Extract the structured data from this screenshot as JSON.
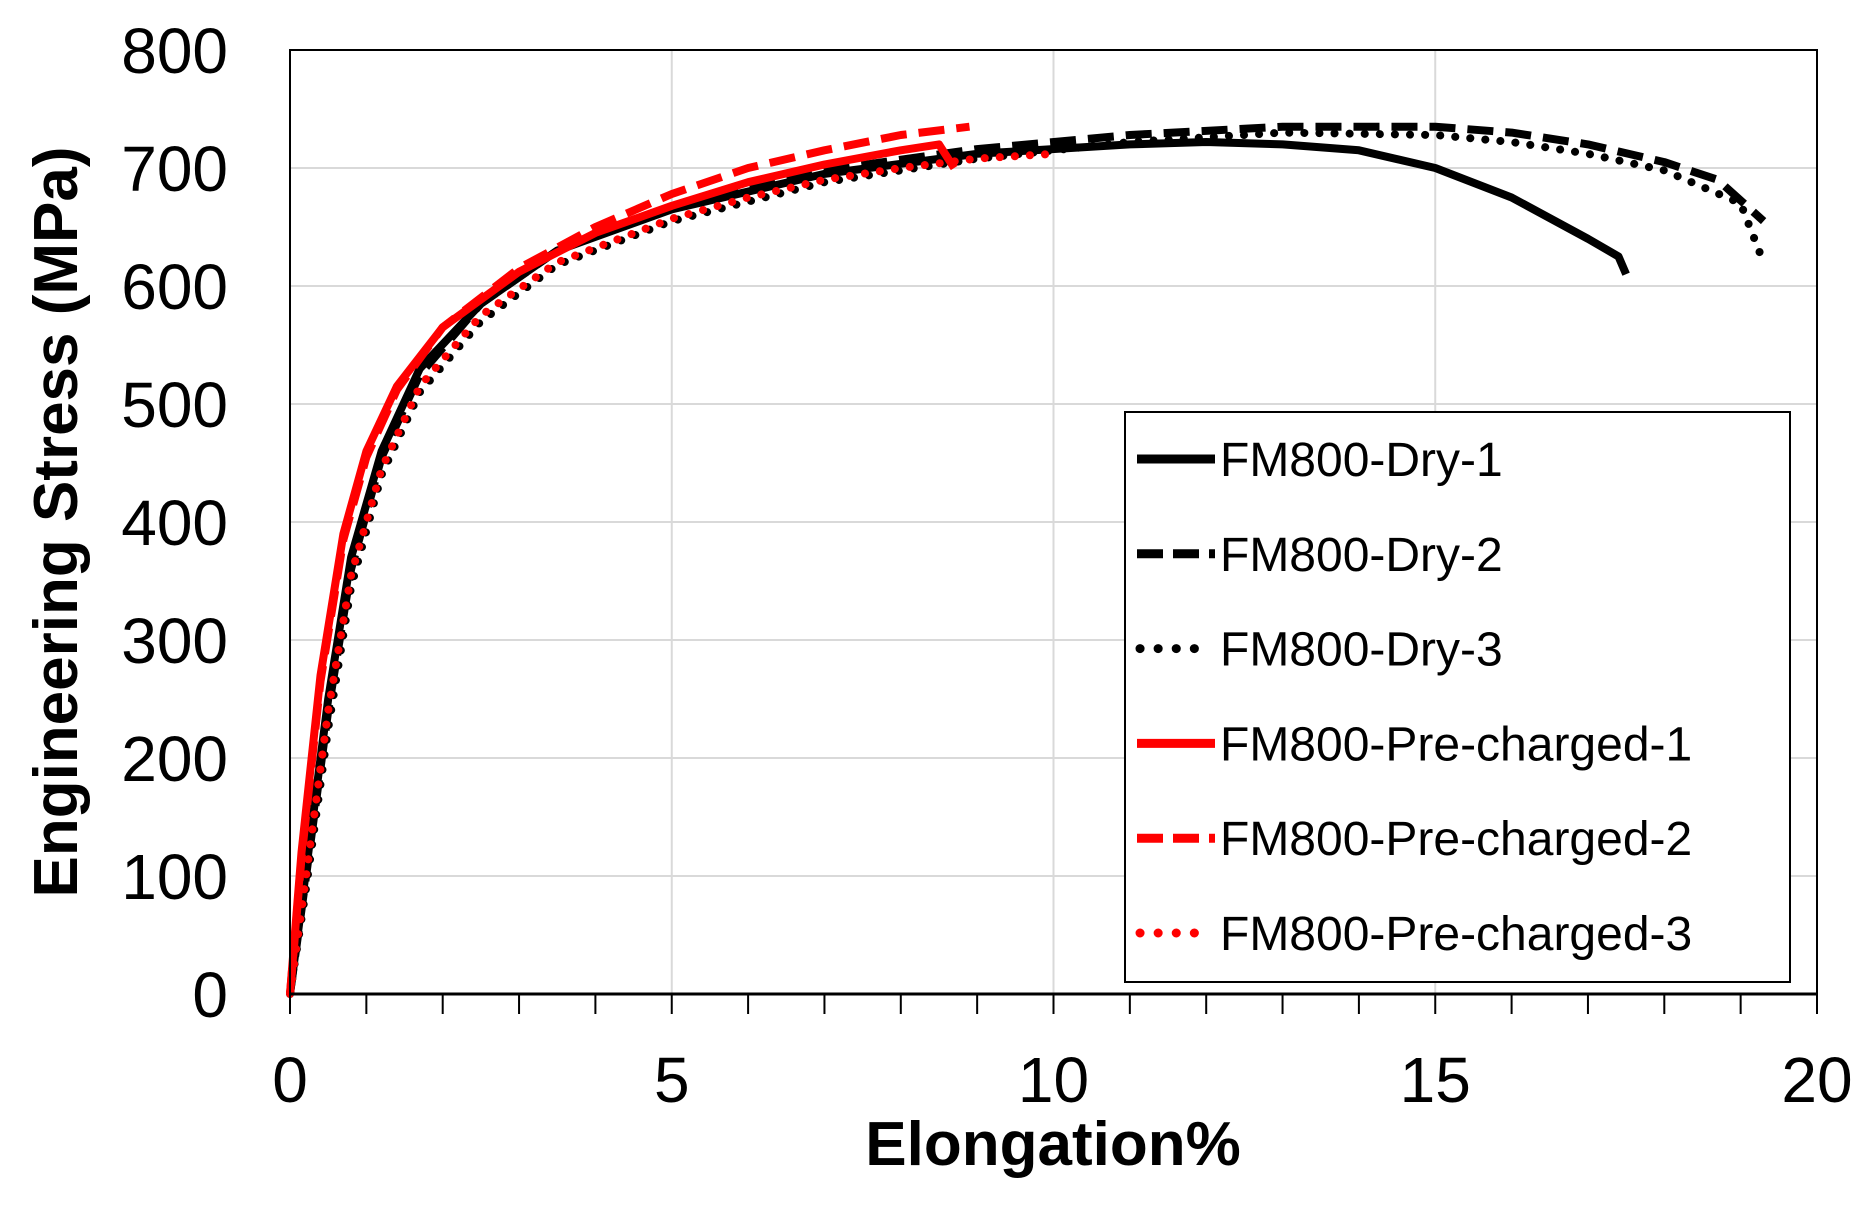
{
  "chart_data": {
    "type": "line",
    "xlabel": "Elongation%",
    "ylabel": "Engineering Stress (MPa)",
    "xlim": [
      0,
      20
    ],
    "ylim": [
      0,
      800
    ],
    "xticks": [
      0,
      5,
      10,
      15,
      20
    ],
    "yticks": [
      0,
      100,
      200,
      300,
      400,
      500,
      600,
      700,
      800
    ],
    "x_minor_tick_step": 1,
    "grid": true,
    "legend_position": "bottom-right",
    "series": [
      {
        "name": "FM800-Dry-1",
        "color": "#000000",
        "style": "solid",
        "x": [
          0,
          0.2,
          0.5,
          0.8,
          1.2,
          1.7,
          2.5,
          3.5,
          5,
          7,
          9,
          11,
          12,
          13,
          14,
          15,
          16,
          17,
          17.4,
          17.5
        ],
        "y": [
          0,
          100,
          250,
          370,
          460,
          530,
          585,
          630,
          665,
          695,
          712,
          720,
          722,
          720,
          715,
          700,
          675,
          640,
          625,
          610
        ]
      },
      {
        "name": "FM800-Dry-2",
        "color": "#000000",
        "style": "dashed",
        "x": [
          0,
          0.2,
          0.5,
          0.8,
          1.2,
          1.7,
          2.5,
          3.5,
          5,
          7,
          9,
          11,
          13,
          15,
          16,
          17,
          18,
          18.7,
          19.3
        ],
        "y": [
          0,
          95,
          240,
          360,
          455,
          525,
          585,
          630,
          668,
          698,
          716,
          728,
          735,
          735,
          730,
          720,
          705,
          690,
          655
        ]
      },
      {
        "name": "FM800-Dry-3",
        "color": "#000000",
        "style": "dotted",
        "x": [
          0,
          0.2,
          0.5,
          0.8,
          1.2,
          1.7,
          2.5,
          3.5,
          5,
          7,
          9,
          11,
          13,
          15,
          16,
          17,
          18,
          19,
          19.3
        ],
        "y": [
          0,
          85,
          225,
          345,
          440,
          510,
          570,
          618,
          655,
          688,
          708,
          722,
          730,
          728,
          722,
          712,
          698,
          670,
          620
        ]
      },
      {
        "name": "FM800-Pre-charged-1",
        "color": "#ff0000",
        "style": "solid",
        "x": [
          0,
          0.15,
          0.4,
          0.7,
          1.0,
          1.4,
          2.0,
          3.0,
          4.0,
          5.0,
          6.0,
          7.0,
          8.0,
          8.5,
          8.7
        ],
        "y": [
          0,
          120,
          270,
          390,
          460,
          515,
          565,
          612,
          645,
          668,
          688,
          703,
          715,
          720,
          700
        ]
      },
      {
        "name": "FM800-Pre-charged-2",
        "color": "#ff0000",
        "style": "dashed",
        "x": [
          0,
          0.15,
          0.4,
          0.7,
          1.0,
          1.4,
          2.0,
          3.0,
          4.0,
          5.0,
          6.0,
          7.0,
          8.0,
          8.9
        ],
        "y": [
          0,
          115,
          265,
          385,
          455,
          512,
          565,
          615,
          650,
          678,
          700,
          715,
          728,
          735
        ]
      },
      {
        "name": "FM800-Pre-charged-3",
        "color": "#ff0000",
        "style": "dotted",
        "x": [
          0,
          0.2,
          0.5,
          0.8,
          1.2,
          1.7,
          2.5,
          3.5,
          5,
          6,
          7,
          8,
          9,
          10
        ],
        "y": [
          0,
          95,
          240,
          355,
          445,
          515,
          575,
          620,
          657,
          675,
          690,
          700,
          708,
          712
        ]
      }
    ]
  }
}
